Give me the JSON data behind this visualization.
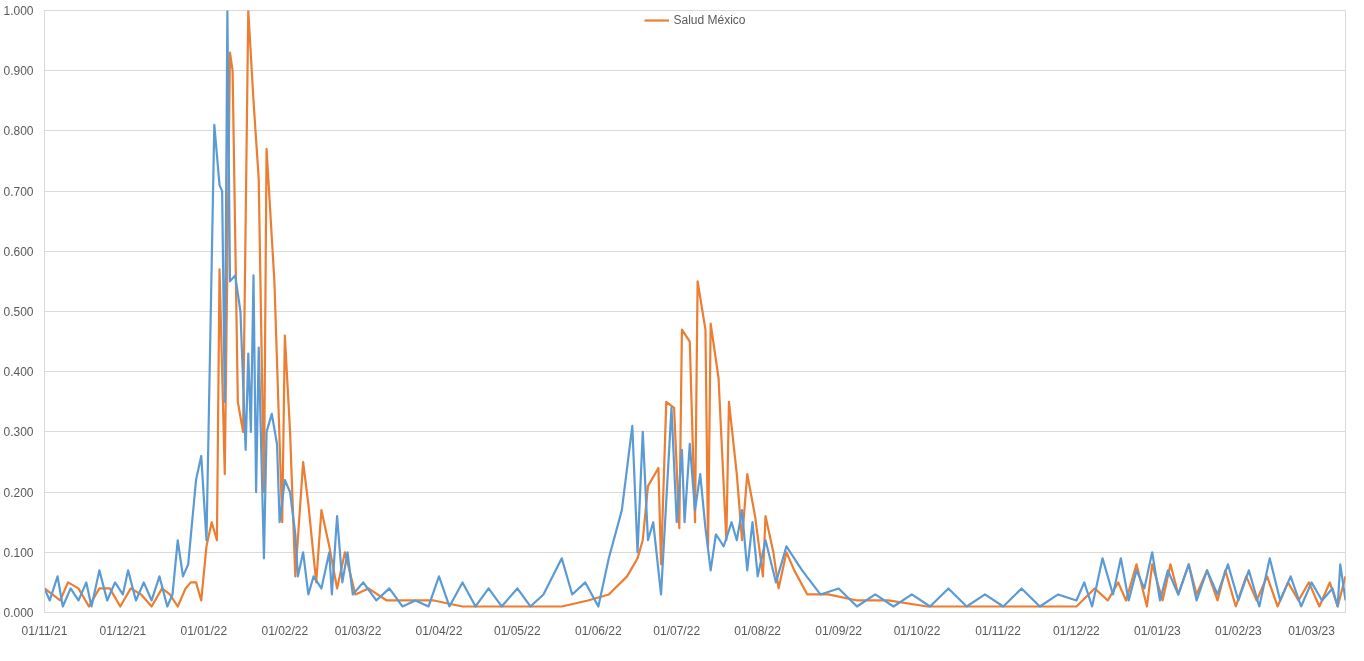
{
  "chart_data": {
    "type": "line",
    "legend": "top",
    "grid": "y",
    "line_style": "solid",
    "marker": "none",
    "xlim": [
      "2021-11-01",
      "2023-03-14"
    ],
    "xticks": [
      {
        "value": "2021-11-01",
        "label": "01/11/21"
      },
      {
        "value": "2021-12-01",
        "label": "01/12/21"
      },
      {
        "value": "2022-01-01",
        "label": "01/01/22"
      },
      {
        "value": "2022-02-01",
        "label": "01/02/22"
      },
      {
        "value": "2022-03-01",
        "label": "01/03/22"
      },
      {
        "value": "2022-04-01",
        "label": "01/04/22"
      },
      {
        "value": "2022-05-01",
        "label": "01/05/22"
      },
      {
        "value": "2022-06-01",
        "label": "01/06/22"
      },
      {
        "value": "2022-07-01",
        "label": "01/07/22"
      },
      {
        "value": "2022-08-01",
        "label": "01/08/22"
      },
      {
        "value": "2022-09-01",
        "label": "01/09/22"
      },
      {
        "value": "2022-10-01",
        "label": "01/10/22"
      },
      {
        "value": "2022-11-01",
        "label": "01/11/22"
      },
      {
        "value": "2022-12-01",
        "label": "01/12/22"
      },
      {
        "value": "2023-01-01",
        "label": "01/01/23"
      },
      {
        "value": "2023-02-01",
        "label": "01/02/23"
      },
      {
        "value": "2023-03-01",
        "label": "01/03/23"
      }
    ],
    "ylim": [
      0,
      1
    ],
    "yticks": [
      {
        "value": 0,
        "label": "0.000"
      },
      {
        "value": 0.1,
        "label": "0.100"
      },
      {
        "value": 0.2,
        "label": "0.200"
      },
      {
        "value": 0.3,
        "label": "0.300"
      },
      {
        "value": 0.4,
        "label": "0.400"
      },
      {
        "value": 0.5,
        "label": "0.500"
      },
      {
        "value": 0.6,
        "label": "0.600"
      },
      {
        "value": 0.7,
        "label": "0.700"
      },
      {
        "value": 0.8,
        "label": "0.800"
      },
      {
        "value": 0.9,
        "label": "0.900"
      },
      {
        "value": 1.0,
        "label": "1.000"
      }
    ],
    "series": [
      {
        "name": "Salud México",
        "color": "#ed7d31",
        "x": [
          "2021-11-01",
          "2021-11-04",
          "2021-11-07",
          "2021-11-10",
          "2021-11-14",
          "2021-11-18",
          "2021-11-22",
          "2021-11-26",
          "2021-11-30",
          "2021-12-04",
          "2021-12-08",
          "2021-12-12",
          "2021-12-16",
          "2021-12-19",
          "2021-12-22",
          "2021-12-25",
          "2021-12-27",
          "2021-12-29",
          "2021-12-31",
          "2022-01-02",
          "2022-01-04",
          "2022-01-06",
          "2022-01-07",
          "2022-01-09",
          "2022-01-11",
          "2022-01-12",
          "2022-01-14",
          "2022-01-16",
          "2022-01-18",
          "2022-01-20",
          "2022-01-22",
          "2022-01-24",
          "2022-01-25",
          "2022-01-28",
          "2022-01-31",
          "2022-02-01",
          "2022-02-03",
          "2022-02-05",
          "2022-02-08",
          "2022-02-10",
          "2022-02-13",
          "2022-02-15",
          "2022-02-18",
          "2022-02-21",
          "2022-02-24",
          "2022-02-28",
          "2022-03-05",
          "2022-03-12",
          "2022-03-20",
          "2022-03-30",
          "2022-04-10",
          "2022-04-22",
          "2022-05-05",
          "2022-05-18",
          "2022-05-28",
          "2022-06-05",
          "2022-06-12",
          "2022-06-16",
          "2022-06-18",
          "2022-06-20",
          "2022-06-24",
          "2022-06-25",
          "2022-06-27",
          "2022-06-30",
          "2022-07-02",
          "2022-07-03",
          "2022-07-06",
          "2022-07-08",
          "2022-07-09",
          "2022-07-12",
          "2022-07-13",
          "2022-07-14",
          "2022-07-17",
          "2022-07-20",
          "2022-07-21",
          "2022-07-24",
          "2022-07-26",
          "2022-07-28",
          "2022-07-31",
          "2022-08-03",
          "2022-08-04",
          "2022-08-07",
          "2022-08-09",
          "2022-08-12",
          "2022-08-15",
          "2022-08-20",
          "2022-08-28",
          "2022-09-08",
          "2022-09-20",
          "2022-10-05",
          "2022-10-20",
          "2022-11-05",
          "2022-11-20",
          "2022-12-01",
          "2022-12-08",
          "2022-12-13",
          "2022-12-17",
          "2022-12-20",
          "2022-12-24",
          "2022-12-28",
          "2022-12-30",
          "2023-01-03",
          "2023-01-06",
          "2023-01-09",
          "2023-01-13",
          "2023-01-16",
          "2023-01-20",
          "2023-01-24",
          "2023-01-27",
          "2023-01-31",
          "2023-02-04",
          "2023-02-08",
          "2023-02-12",
          "2023-02-16",
          "2023-02-20",
          "2023-02-24",
          "2023-02-28",
          "2023-03-04",
          "2023-03-08",
          "2023-03-11",
          "2023-03-14"
        ],
        "values": [
          0.04,
          0.03,
          0.02,
          0.05,
          0.04,
          0.01,
          0.04,
          0.04,
          0.01,
          0.04,
          0.03,
          0.01,
          0.04,
          0.03,
          0.01,
          0.04,
          0.05,
          0.05,
          0.02,
          0.11,
          0.15,
          0.12,
          0.57,
          0.23,
          0.93,
          0.9,
          0.35,
          0.3,
          1.0,
          0.85,
          0.72,
          0.2,
          0.77,
          0.55,
          0.15,
          0.46,
          0.3,
          0.06,
          0.25,
          0.18,
          0.05,
          0.17,
          0.11,
          0.04,
          0.1,
          0.03,
          0.04,
          0.02,
          0.02,
          0.02,
          0.01,
          0.01,
          0.01,
          0.01,
          0.02,
          0.03,
          0.06,
          0.09,
          0.12,
          0.21,
          0.24,
          0.08,
          0.35,
          0.34,
          0.14,
          0.47,
          0.45,
          0.15,
          0.55,
          0.47,
          0.11,
          0.48,
          0.39,
          0.12,
          0.35,
          0.23,
          0.12,
          0.23,
          0.16,
          0.06,
          0.16,
          0.1,
          0.04,
          0.1,
          0.07,
          0.03,
          0.03,
          0.02,
          0.02,
          0.01,
          0.01,
          0.01,
          0.01,
          0.01,
          0.04,
          0.02,
          0.05,
          0.02,
          0.08,
          0.01,
          0.08,
          0.02,
          0.08,
          0.03,
          0.08,
          0.03,
          0.07,
          0.02,
          0.07,
          0.01,
          0.06,
          0.02,
          0.06,
          0.01,
          0.05,
          0.02,
          0.05,
          0.01,
          0.05,
          0.01,
          0.06
        ]
      },
      {
        "color": "#5b9bd5",
        "x": [
          "2021-11-01",
          "2021-11-03",
          "2021-11-06",
          "2021-11-08",
          "2021-11-11",
          "2021-11-14",
          "2021-11-17",
          "2021-11-19",
          "2021-11-22",
          "2021-11-25",
          "2021-11-28",
          "2021-12-01",
          "2021-12-03",
          "2021-12-06",
          "2021-12-09",
          "2021-12-12",
          "2021-12-15",
          "2021-12-18",
          "2021-12-20",
          "2021-12-22",
          "2021-12-24",
          "2021-12-26",
          "2021-12-29",
          "2021-12-31",
          "2022-01-02",
          "2022-01-05",
          "2022-01-07",
          "2022-01-08",
          "2022-01-09",
          "2022-01-10",
          "2022-01-11",
          "2022-01-13",
          "2022-01-15",
          "2022-01-17",
          "2022-01-18",
          "2022-01-19",
          "2022-01-20",
          "2022-01-21",
          "2022-01-22",
          "2022-01-24",
          "2022-01-25",
          "2022-01-27",
          "2022-01-29",
          "2022-01-30",
          "2022-02-01",
          "2022-02-03",
          "2022-02-05",
          "2022-02-06",
          "2022-02-08",
          "2022-02-10",
          "2022-02-12",
          "2022-02-15",
          "2022-02-18",
          "2022-02-19",
          "2022-02-21",
          "2022-02-23",
          "2022-02-25",
          "2022-02-27",
          "2022-03-03",
          "2022-03-08",
          "2022-03-13",
          "2022-03-18",
          "2022-03-23",
          "2022-03-28",
          "2022-04-01",
          "2022-04-05",
          "2022-04-10",
          "2022-04-15",
          "2022-04-20",
          "2022-04-25",
          "2022-05-01",
          "2022-05-06",
          "2022-05-11",
          "2022-05-18",
          "2022-05-22",
          "2022-05-27",
          "2022-06-01",
          "2022-06-05",
          "2022-06-10",
          "2022-06-14",
          "2022-06-16",
          "2022-06-18",
          "2022-06-20",
          "2022-06-22",
          "2022-06-25",
          "2022-06-29",
          "2022-07-01",
          "2022-07-03",
          "2022-07-04",
          "2022-07-06",
          "2022-07-08",
          "2022-07-10",
          "2022-07-12",
          "2022-07-14",
          "2022-07-16",
          "2022-07-19",
          "2022-07-22",
          "2022-07-24",
          "2022-07-26",
          "2022-07-28",
          "2022-07-30",
          "2022-08-01",
          "2022-08-04",
          "2022-08-08",
          "2022-08-12",
          "2022-08-18",
          "2022-08-25",
          "2022-09-01",
          "2022-09-08",
          "2022-09-15",
          "2022-09-22",
          "2022-09-29",
          "2022-10-06",
          "2022-10-13",
          "2022-10-20",
          "2022-10-27",
          "2022-11-03",
          "2022-11-10",
          "2022-11-17",
          "2022-11-24",
          "2022-12-01",
          "2022-12-04",
          "2022-12-07",
          "2022-12-11",
          "2022-12-15",
          "2022-12-18",
          "2022-12-21",
          "2022-12-24",
          "2022-12-27",
          "2022-12-30",
          "2023-01-02",
          "2023-01-05",
          "2023-01-09",
          "2023-01-13",
          "2023-01-16",
          "2023-01-20",
          "2023-01-24",
          "2023-01-28",
          "2023-02-01",
          "2023-02-05",
          "2023-02-09",
          "2023-02-13",
          "2023-02-17",
          "2023-02-21",
          "2023-02-25",
          "2023-03-01",
          "2023-03-05",
          "2023-03-09",
          "2023-03-11",
          "2023-03-12",
          "2023-03-14"
        ],
        "values": [
          0.04,
          0.02,
          0.06,
          0.01,
          0.04,
          0.02,
          0.05,
          0.01,
          0.07,
          0.02,
          0.05,
          0.03,
          0.07,
          0.02,
          0.05,
          0.02,
          0.06,
          0.01,
          0.03,
          0.12,
          0.06,
          0.08,
          0.22,
          0.26,
          0.12,
          0.81,
          0.71,
          0.7,
          0.35,
          1.0,
          0.55,
          0.56,
          0.5,
          0.27,
          0.43,
          0.3,
          0.56,
          0.2,
          0.44,
          0.09,
          0.3,
          0.33,
          0.28,
          0.15,
          0.22,
          0.2,
          0.13,
          0.06,
          0.1,
          0.03,
          0.06,
          0.04,
          0.1,
          0.03,
          0.16,
          0.05,
          0.1,
          0.03,
          0.05,
          0.02,
          0.04,
          0.01,
          0.02,
          0.01,
          0.06,
          0.01,
          0.05,
          0.01,
          0.04,
          0.01,
          0.04,
          0.01,
          0.03,
          0.09,
          0.03,
          0.05,
          0.01,
          0.09,
          0.17,
          0.31,
          0.1,
          0.3,
          0.12,
          0.15,
          0.03,
          0.34,
          0.15,
          0.27,
          0.15,
          0.28,
          0.17,
          0.23,
          0.14,
          0.07,
          0.13,
          0.11,
          0.15,
          0.12,
          0.17,
          0.07,
          0.15,
          0.06,
          0.12,
          0.05,
          0.11,
          0.07,
          0.03,
          0.04,
          0.01,
          0.03,
          0.01,
          0.03,
          0.01,
          0.04,
          0.01,
          0.03,
          0.01,
          0.04,
          0.01,
          0.03,
          0.02,
          0.05,
          0.01,
          0.09,
          0.03,
          0.09,
          0.02,
          0.07,
          0.04,
          0.1,
          0.02,
          0.07,
          0.03,
          0.08,
          0.02,
          0.07,
          0.03,
          0.08,
          0.02,
          0.07,
          0.01,
          0.09,
          0.02,
          0.06,
          0.01,
          0.05,
          0.02,
          0.04,
          0.01,
          0.08,
          0.02
        ]
      }
    ]
  }
}
